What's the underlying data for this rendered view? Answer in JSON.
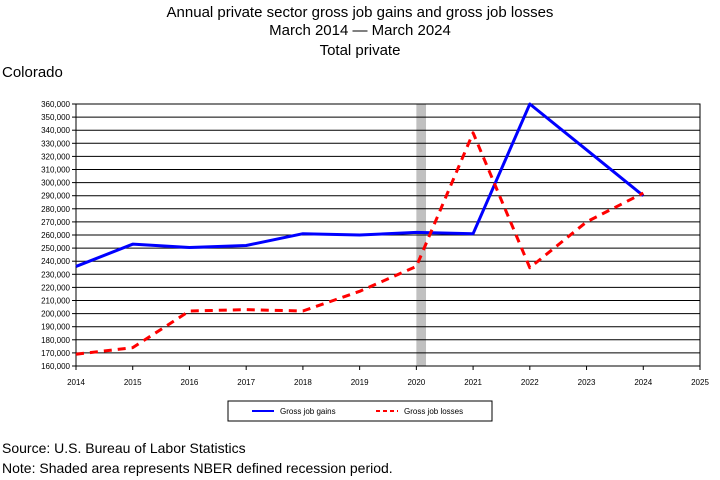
{
  "chart_data": {
    "type": "line",
    "title": [
      "Annual private sector gross job gains and gross job losses",
      "March 2014 — March 2024",
      "Total private"
    ],
    "region": "Colorado",
    "x": [
      2014,
      2015,
      2016,
      2017,
      2018,
      2019,
      2020,
      2021,
      2022,
      2023,
      2024
    ],
    "xlim": [
      2014,
      2025
    ],
    "xticks": [
      "2014",
      "2015",
      "2016",
      "2017",
      "2018",
      "2019",
      "2020",
      "2021",
      "2022",
      "2023",
      "2024",
      "2025"
    ],
    "ylim": [
      160000,
      360000
    ],
    "yticks": [
      "160,000",
      "170,000",
      "180,000",
      "190,000",
      "200,000",
      "210,000",
      "220,000",
      "230,000",
      "240,000",
      "250,000",
      "260,000",
      "270,000",
      "280,000",
      "290,000",
      "300,000",
      "310,000",
      "320,000",
      "330,000",
      "340,000",
      "350,000",
      "360,000"
    ],
    "grid": true,
    "recession_band": [
      2020.0,
      2020.17
    ],
    "series": [
      {
        "name": "Gross job gains",
        "color": "#0000ff",
        "dash": "solid",
        "values": [
          236000,
          253000,
          250500,
          252000,
          261000,
          260000,
          262000,
          261000,
          360000,
          325000,
          290000
        ]
      },
      {
        "name": "Gross job losses",
        "color": "#ff0000",
        "dash": "dashed",
        "values": [
          169000,
          174000,
          202000,
          203000,
          202000,
          217000,
          236000,
          338000,
          235000,
          270000,
          292000
        ]
      }
    ],
    "legend_position": "bottom-center"
  },
  "footer": {
    "source": "Source: U.S. Bureau of Labor Statistics",
    "note": "Note: Shaded area represents NBER defined recession period."
  }
}
